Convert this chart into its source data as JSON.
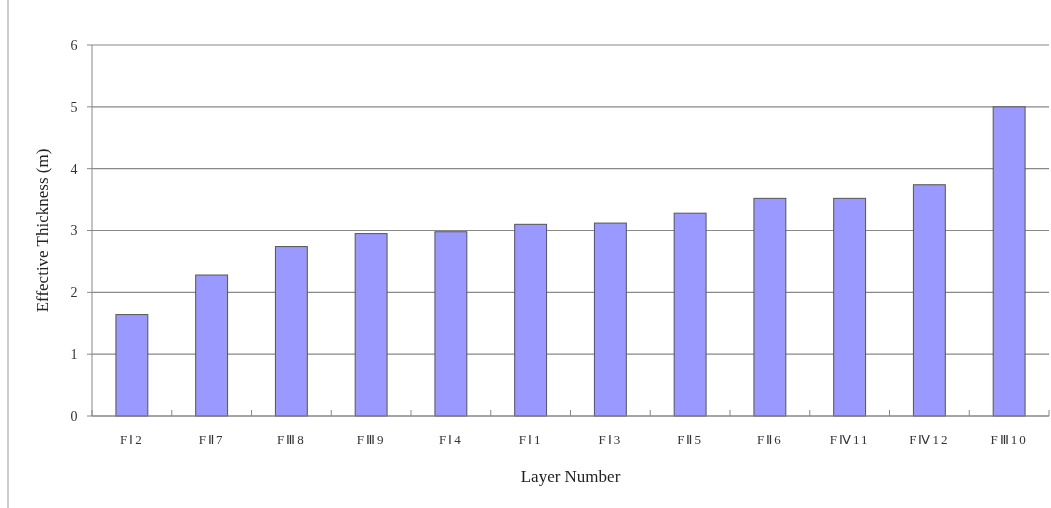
{
  "chart_data": {
    "type": "bar",
    "xlabel": "Layer Number",
    "ylabel": "Effective Thickness (m)",
    "categories": [
      "FⅠ2",
      "FⅡ7",
      "FⅢ8",
      "FⅢ9",
      "FⅠ4",
      "FⅠ1",
      "FⅠ3",
      "FⅡ5",
      "FⅡ6",
      "FⅣ11",
      "FⅣ12",
      "FⅢ10"
    ],
    "values": [
      1.64,
      2.28,
      2.74,
      2.95,
      2.98,
      3.1,
      3.12,
      3.28,
      3.52,
      3.52,
      3.74,
      5.0
    ],
    "color": "#9999ff",
    "ylim": [
      0,
      6
    ],
    "yticks": [
      0,
      1,
      2,
      3,
      4,
      5,
      6
    ],
    "grid": "y"
  }
}
